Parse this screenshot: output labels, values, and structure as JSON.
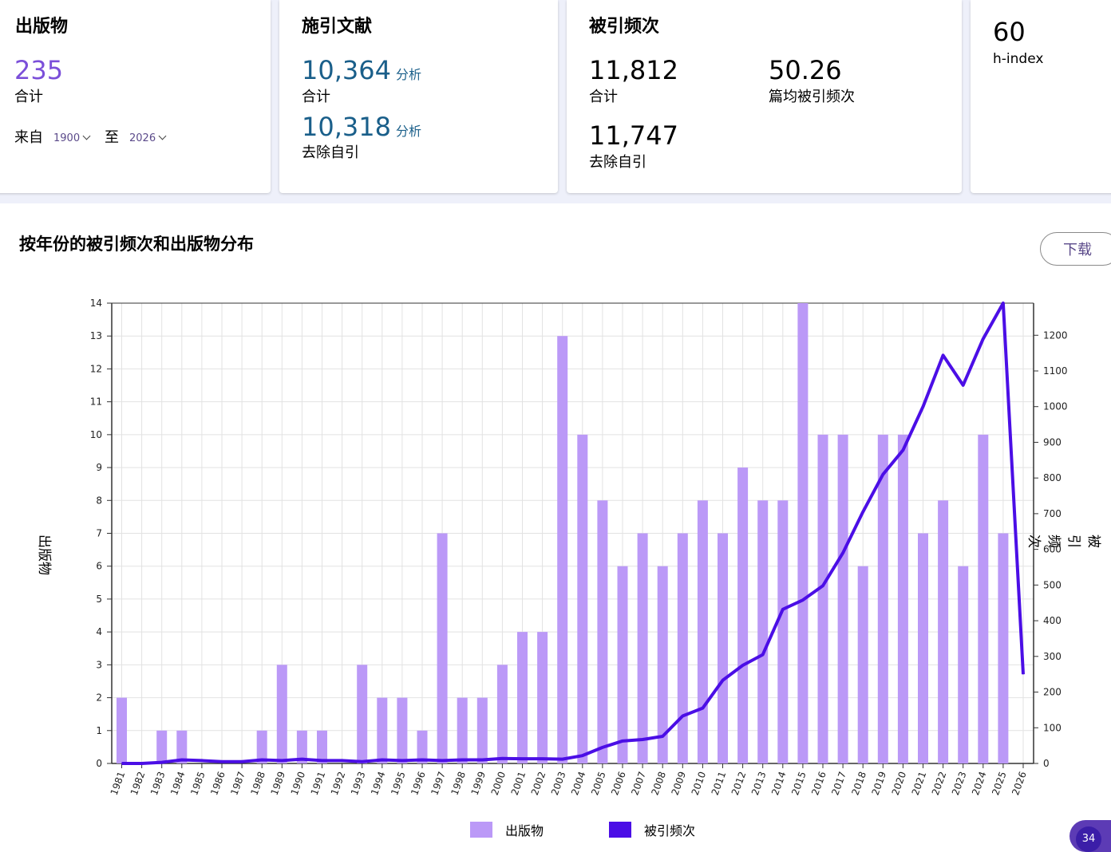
{
  "cards": {
    "publications": {
      "title": "出版物",
      "total": "235",
      "total_label": "合计",
      "from_label": "来自",
      "from_value": "1900",
      "to_label": "至",
      "to_value": "2026"
    },
    "citing": {
      "title": "施引文献",
      "total": "10,364",
      "total_link": "分析",
      "total_label": "合计",
      "excl": "10,318",
      "excl_link": "分析",
      "excl_label": "去除自引"
    },
    "times_cited": {
      "title": "被引频次",
      "total": "11,812",
      "total_label": "合计",
      "avg": "50.26",
      "avg_label": "篇均被引频次",
      "excl": "11,747",
      "excl_label": "去除自引"
    },
    "hindex": {
      "value": "60",
      "label": "h-index"
    }
  },
  "section": {
    "title": "按年份的被引频次和出版物分布",
    "download": "下载"
  },
  "colors": {
    "bar": "#bb99f7",
    "line": "#4b0ee6",
    "accent": "#7b4fd9"
  },
  "chart_data": {
    "type": "bar",
    "x": [
      "1981",
      "1982",
      "1983",
      "1984",
      "1985",
      "1986",
      "1987",
      "1988",
      "1989",
      "1990",
      "1991",
      "1992",
      "1993",
      "1994",
      "1995",
      "1996",
      "1997",
      "1998",
      "1999",
      "2000",
      "2001",
      "2002",
      "2003",
      "2004",
      "2005",
      "2006",
      "2007",
      "2008",
      "2009",
      "2010",
      "2011",
      "2012",
      "2013",
      "2014",
      "2015",
      "2016",
      "2017",
      "2018",
      "2019",
      "2020",
      "2021",
      "2022",
      "2023",
      "2024",
      "2025",
      "2026"
    ],
    "series": [
      {
        "name": "出版物",
        "type": "bar",
        "axis": "left",
        "values": [
          2,
          0,
          1,
          1,
          0,
          0,
          0,
          1,
          3,
          1,
          1,
          0,
          3,
          2,
          2,
          1,
          7,
          2,
          2,
          3,
          4,
          4,
          13,
          10,
          8,
          6,
          7,
          6,
          7,
          8,
          7,
          9,
          8,
          8,
          14,
          10,
          10,
          6,
          10,
          10,
          7,
          8,
          6,
          10,
          7,
          0
        ]
      },
      {
        "name": "被引频次",
        "type": "line",
        "axis": "right",
        "values": [
          0,
          0,
          3,
          10,
          8,
          5,
          5,
          10,
          8,
          12,
          8,
          8,
          5,
          10,
          8,
          10,
          8,
          10,
          10,
          14,
          13,
          13,
          12,
          22,
          45,
          63,
          67,
          76,
          133,
          155,
          233,
          275,
          305,
          432,
          458,
          498,
          590,
          705,
          810,
          878,
          1000,
          1144,
          1060,
          1190,
          1290,
          250
        ]
      }
    ],
    "ylabel_left": "出版物",
    "ylabel_right": "被引频次",
    "ylim_left": [
      0,
      14
    ],
    "ylim_right": [
      0,
      1290
    ],
    "yticks_left": [
      0,
      1,
      2,
      3,
      4,
      5,
      6,
      7,
      8,
      9,
      10,
      11,
      12,
      13,
      14
    ],
    "yticks_right": [
      0,
      100,
      200,
      300,
      400,
      500,
      600,
      700,
      800,
      900,
      1000,
      1100,
      1200
    ],
    "grid": true,
    "legend_position": "bottom"
  },
  "badge": {
    "count": "34"
  }
}
